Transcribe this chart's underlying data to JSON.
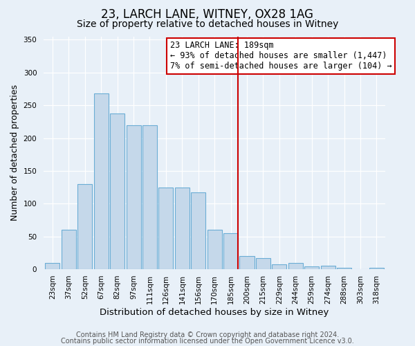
{
  "title": "23, LARCH LANE, WITNEY, OX28 1AG",
  "subtitle": "Size of property relative to detached houses in Witney",
  "xlabel": "Distribution of detached houses by size in Witney",
  "ylabel": "Number of detached properties",
  "bin_labels": [
    "23sqm",
    "37sqm",
    "52sqm",
    "67sqm",
    "82sqm",
    "97sqm",
    "111sqm",
    "126sqm",
    "141sqm",
    "156sqm",
    "170sqm",
    "185sqm",
    "200sqm",
    "215sqm",
    "229sqm",
    "244sqm",
    "259sqm",
    "274sqm",
    "288sqm",
    "303sqm",
    "318sqm"
  ],
  "bar_heights": [
    10,
    60,
    130,
    268,
    237,
    220,
    220,
    125,
    125,
    117,
    60,
    55,
    20,
    17,
    8,
    10,
    4,
    5,
    2,
    0,
    2
  ],
  "bar_color": "#c5d8ea",
  "bar_edgecolor": "#6aadd5",
  "vline_x": 11,
  "vline_color": "#cc0000",
  "annotation_title": "23 LARCH LANE: 189sqm",
  "annotation_line1": "← 93% of detached houses are smaller (1,447)",
  "annotation_line2": "7% of semi-detached houses are larger (104) →",
  "annotation_edgecolor": "#cc0000",
  "ylim": [
    0,
    355
  ],
  "yticks": [
    0,
    50,
    100,
    150,
    200,
    250,
    300,
    350
  ],
  "footer1": "Contains HM Land Registry data © Crown copyright and database right 2024.",
  "footer2": "Contains public sector information licensed under the Open Government Licence v3.0.",
  "bg_color": "#e8f0f8",
  "title_fontsize": 12,
  "subtitle_fontsize": 10,
  "xlabel_fontsize": 9.5,
  "ylabel_fontsize": 9,
  "tick_fontsize": 7.5,
  "footer_fontsize": 7,
  "annotation_fontsize": 8.5
}
